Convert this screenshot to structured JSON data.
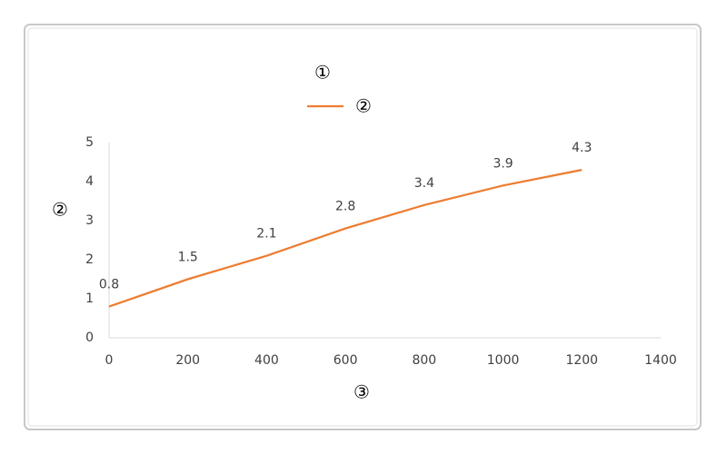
{
  "chart_data": {
    "type": "line",
    "title": "①",
    "x_label": "③",
    "y_label": "②",
    "x": [
      0,
      200,
      400,
      600,
      800,
      1000,
      1200
    ],
    "series": [
      {
        "name": "②",
        "color": "#ed7d31",
        "values": [
          0.8,
          1.5,
          2.1,
          2.8,
          3.4,
          3.9,
          4.3
        ]
      }
    ],
    "xlim": [
      0,
      1400
    ],
    "xticks": [
      0,
      200,
      400,
      600,
      800,
      1000,
      1200,
      1400
    ],
    "ylim": [
      0,
      5
    ],
    "yticks": [
      0,
      1,
      2,
      3,
      4,
      5
    ],
    "grid": false,
    "legend": "top",
    "data_labels": true
  }
}
